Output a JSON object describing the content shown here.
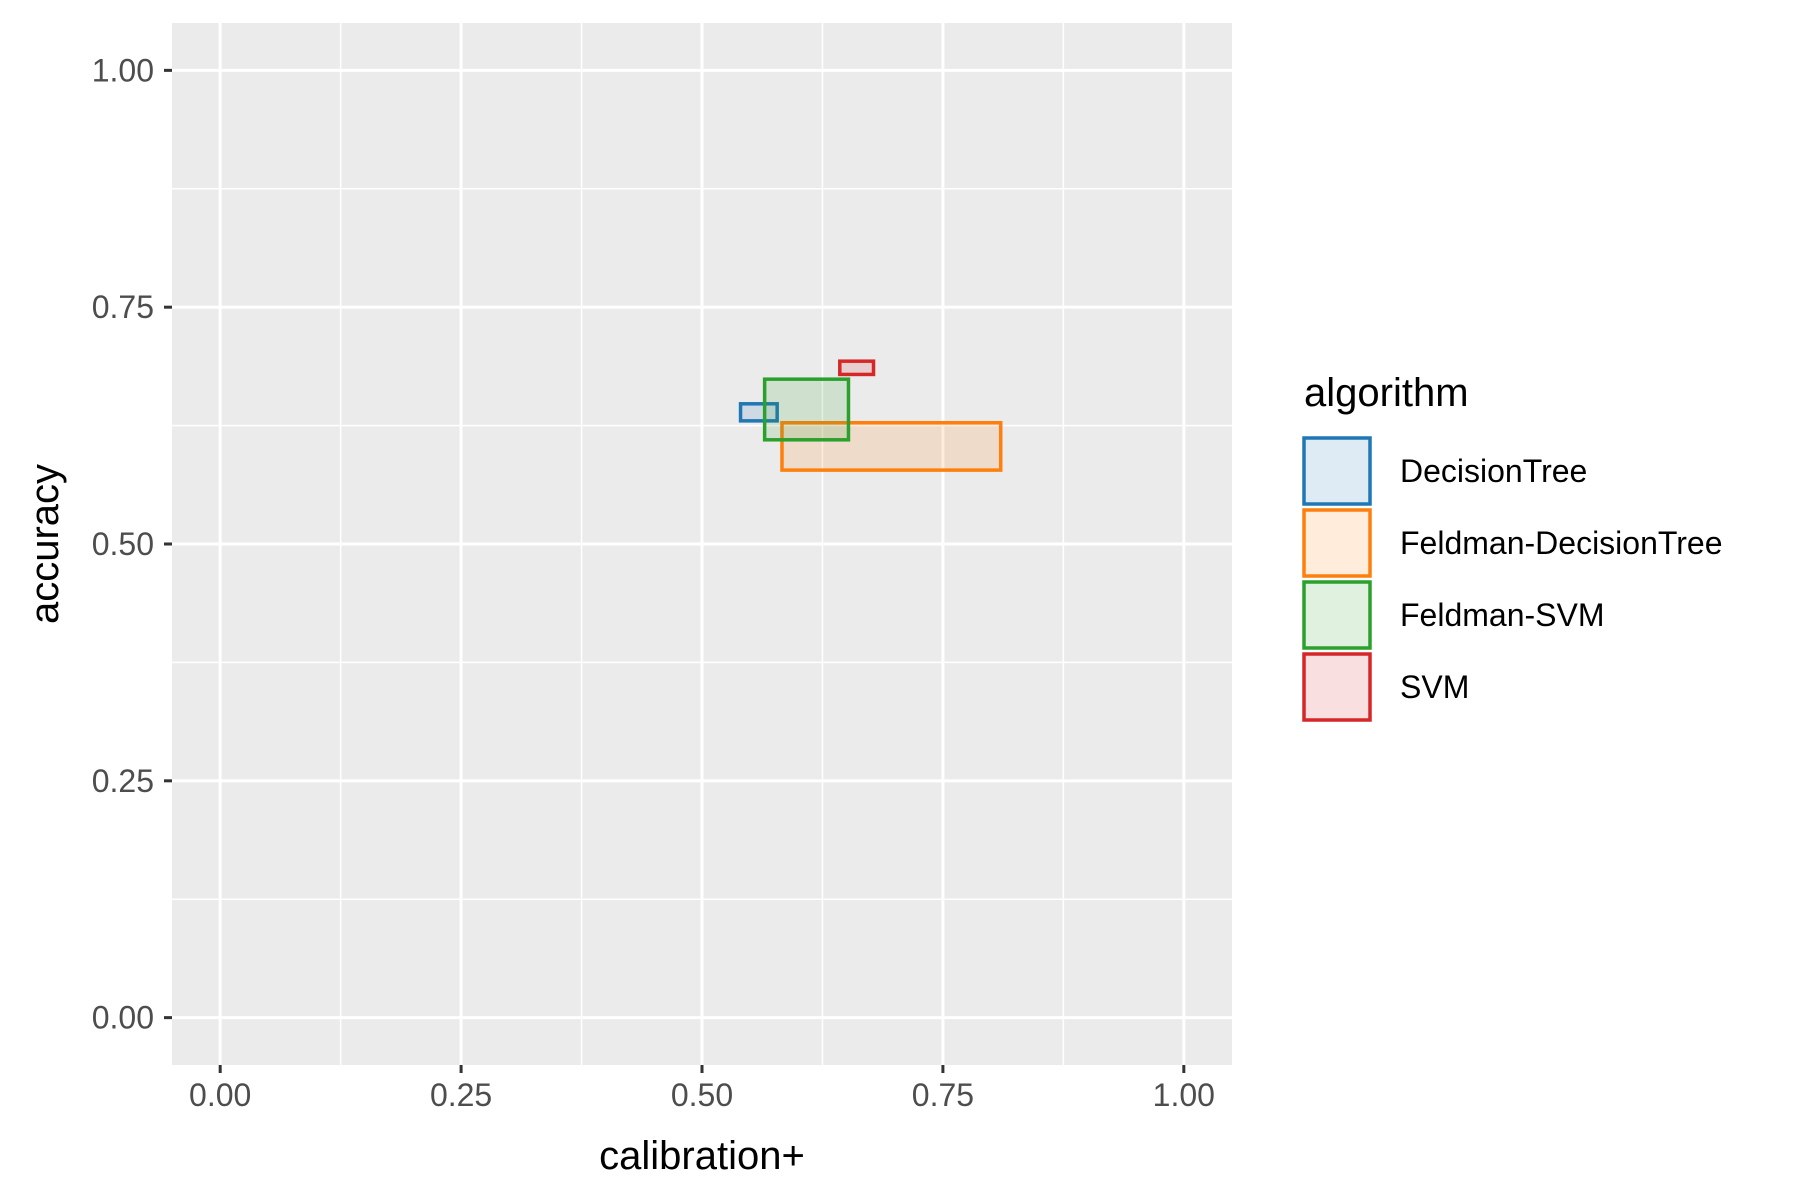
{
  "chart_data": {
    "type": "rect",
    "xlabel": "calibration+",
    "ylabel": "accuracy",
    "xlim": [
      -0.05,
      1.05
    ],
    "ylim": [
      -0.05,
      1.05
    ],
    "xticks": [
      0.0,
      0.25,
      0.5,
      0.75,
      1.0
    ],
    "yticks": [
      0.0,
      0.25,
      0.5,
      0.75,
      1.0
    ],
    "xtick_labels": [
      "0.00",
      "0.25",
      "0.50",
      "0.75",
      "1.00"
    ],
    "ytick_labels": [
      "0.00",
      "0.25",
      "0.50",
      "0.75",
      "1.00"
    ],
    "grid": true,
    "panel_background": "#ebebeb",
    "legend": {
      "title": "algorithm",
      "placement": "right"
    },
    "series": [
      {
        "name": "DecisionTree",
        "color": "#1f77b4",
        "xmin": 0.54,
        "xmax": 0.578,
        "ymin": 0.63,
        "ymax": 0.648
      },
      {
        "name": "Feldman-DecisionTree",
        "color": "#ff7f0e",
        "xmin": 0.583,
        "xmax": 0.81,
        "ymin": 0.578,
        "ymax": 0.628
      },
      {
        "name": "Feldman-SVM",
        "color": "#2ca02c",
        "xmin": 0.565,
        "xmax": 0.652,
        "ymin": 0.61,
        "ymax": 0.674
      },
      {
        "name": "SVM",
        "color": "#d62728",
        "xmin": 0.643,
        "xmax": 0.678,
        "ymin": 0.679,
        "ymax": 0.693
      }
    ]
  }
}
